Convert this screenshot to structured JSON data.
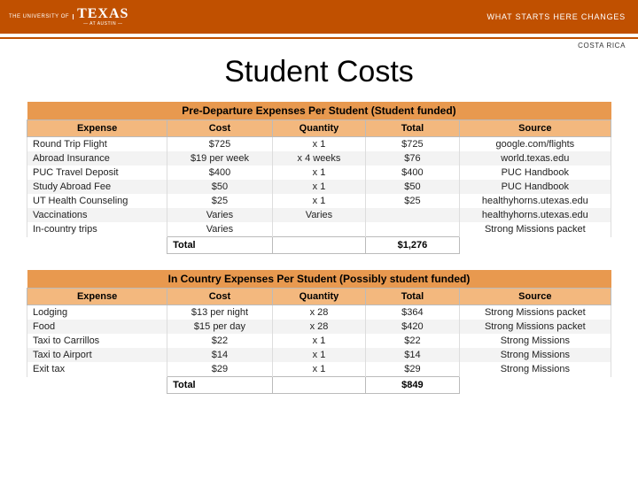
{
  "header": {
    "logo_top": "THE UNIVERSITY OF",
    "logo_main": "TEXAS",
    "logo_sub": "— AT AUSTIN —",
    "tagline": "WHAT STARTS HERE CHANGES",
    "location": "COSTA RICA"
  },
  "title": "Student Costs",
  "colors": {
    "brand": "#c05000",
    "section_bg": "#e8994f",
    "colhead_bg": "#f3b87e",
    "row_alt": "#f3f3f3",
    "border": "#bbb"
  },
  "columns": [
    "Expense",
    "Cost",
    "Quantity",
    "Total",
    "Source"
  ],
  "tables": [
    {
      "title": "Pre-Departure Expenses Per Student (Student funded)",
      "rows": [
        {
          "expense": "Round Trip Flight",
          "cost": "$725",
          "qty": "x 1",
          "total": "$725",
          "source": "google.com/flights"
        },
        {
          "expense": "Abroad Insurance",
          "cost": "$19 per week",
          "qty": "x 4 weeks",
          "total": "$76",
          "source": "world.texas.edu"
        },
        {
          "expense": "PUC Travel Deposit",
          "cost": "$400",
          "qty": "x 1",
          "total": "$400",
          "source": "PUC Handbook"
        },
        {
          "expense": "Study Abroad Fee",
          "cost": "$50",
          "qty": "x 1",
          "total": "$50",
          "source": "PUC Handbook"
        },
        {
          "expense": "UT Health Counseling",
          "cost": "$25",
          "qty": "x 1",
          "total": "$25",
          "source": "healthyhorns.utexas.edu"
        },
        {
          "expense": "Vaccinations",
          "cost": "Varies",
          "qty": "Varies",
          "total": "",
          "source": "healthyhorns.utexas.edu"
        },
        {
          "expense": "In-country trips",
          "cost": "Varies",
          "qty": "",
          "total": "",
          "source": "Strong Missions packet"
        }
      ],
      "total_label": "Total",
      "total_value": "$1,276"
    },
    {
      "title": "In Country Expenses Per Student (Possibly student funded)",
      "rows": [
        {
          "expense": "Lodging",
          "cost": "$13 per night",
          "qty": "x 28",
          "total": "$364",
          "source": "Strong Missions packet"
        },
        {
          "expense": "Food",
          "cost": "$15 per day",
          "qty": "x 28",
          "total": "$420",
          "source": "Strong Missions packet"
        },
        {
          "expense": "Taxi to Carrillos",
          "cost": "$22",
          "qty": "x 1",
          "total": "$22",
          "source": "Strong Missions"
        },
        {
          "expense": "Taxi to Airport",
          "cost": "$14",
          "qty": "x 1",
          "total": "$14",
          "source": "Strong Missions"
        },
        {
          "expense": "Exit tax",
          "cost": "$29",
          "qty": "x 1",
          "total": "$29",
          "source": "Strong Missions"
        }
      ],
      "total_label": "Total",
      "total_value": "$849"
    }
  ]
}
